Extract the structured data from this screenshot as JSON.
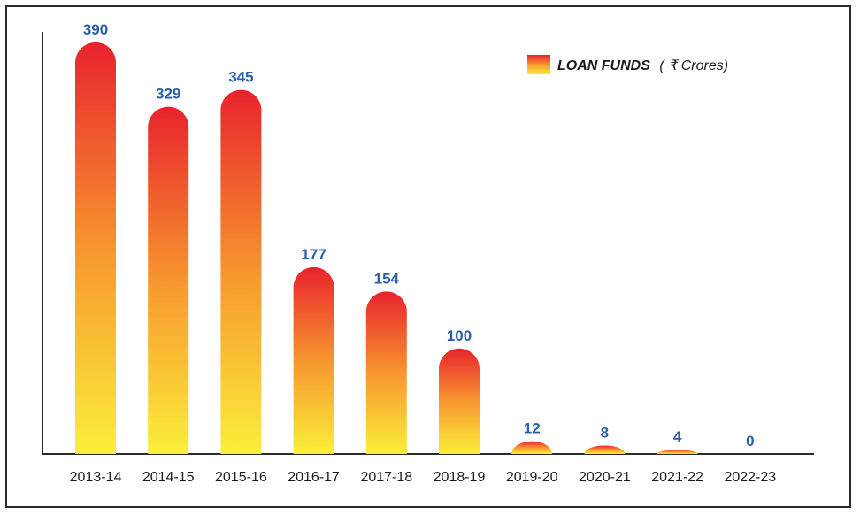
{
  "colors": {
    "bar_top": "#e8232d",
    "bar_mid": "#f7962f",
    "bar_bottom": "#fbef3a",
    "value_label": "#2a5ea8",
    "axis": "#2a2a2a"
  },
  "legend": {
    "label": "LOAN FUNDS",
    "unit": "( ₹  Crores)"
  },
  "chart_data": {
    "type": "bar",
    "title": "",
    "xlabel": "",
    "ylabel": "",
    "categories": [
      "2013-14",
      "2014-15",
      "2015-16",
      "2016-17",
      "2017-18",
      "2018-19",
      "2019-20",
      "2020-21",
      "2021-22",
      "2022-23"
    ],
    "series": [
      {
        "name": "LOAN FUNDS ( ₹  Crores)",
        "values": [
          390,
          329,
          345,
          177,
          154,
          100,
          12,
          8,
          4,
          0
        ]
      }
    ],
    "ylim": [
      0,
      400
    ],
    "grid": false,
    "legend_position": "top-right",
    "show_data_labels": true
  }
}
